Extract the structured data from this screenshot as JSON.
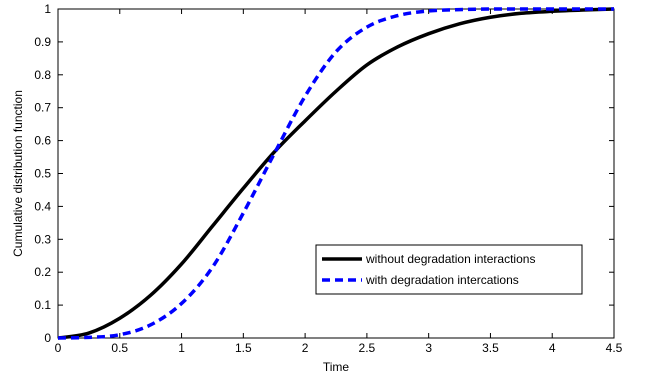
{
  "chart_data": {
    "type": "line",
    "title": "",
    "xlabel": "Time",
    "ylabel": "Cumulative distribution function",
    "xlim": [
      0,
      4.5
    ],
    "ylim": [
      0,
      1
    ],
    "x_ticks": [
      "0",
      "0.5",
      "1",
      "1.5",
      "2",
      "2.5",
      "3",
      "3.5",
      "4",
      "4.5"
    ],
    "y_ticks": [
      "0",
      "0.1",
      "0.2",
      "0.3",
      "0.4",
      "0.5",
      "0.6",
      "0.7",
      "0.8",
      "0.9",
      "1"
    ],
    "grid": false,
    "legend_position": "lower-right",
    "series": [
      {
        "name": "without degradation interactions",
        "color": "#000000",
        "line_style": "solid",
        "x": [
          0,
          0.25,
          0.5,
          0.75,
          1,
          1.25,
          1.5,
          1.75,
          2,
          2.25,
          2.5,
          2.75,
          3,
          3.25,
          3.5,
          3.75,
          4,
          4.25,
          4.5
        ],
        "y": [
          0,
          0.015,
          0.06,
          0.13,
          0.225,
          0.34,
          0.455,
          0.565,
          0.66,
          0.75,
          0.83,
          0.885,
          0.925,
          0.955,
          0.975,
          0.987,
          0.993,
          0.997,
          1.0
        ]
      },
      {
        "name": "with degradation intercations",
        "color": "#0000ff",
        "line_style": "dashed",
        "x": [
          0,
          0.25,
          0.5,
          0.75,
          1,
          1.25,
          1.5,
          1.75,
          2,
          2.25,
          2.5,
          2.75,
          3,
          3.25,
          3.5,
          3.75,
          4,
          4.25,
          4.5
        ],
        "y": [
          0,
          0.002,
          0.01,
          0.04,
          0.105,
          0.215,
          0.38,
          0.56,
          0.735,
          0.87,
          0.945,
          0.98,
          0.994,
          0.998,
          1.0,
          1.0,
          1.0,
          1.0,
          1.0
        ]
      }
    ]
  }
}
